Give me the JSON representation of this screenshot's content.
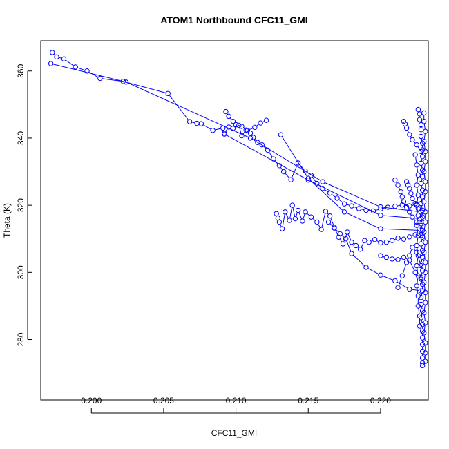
{
  "chart_data": {
    "type": "scatter",
    "title": "ATOM1 Northbound CFC11_GMI",
    "xlabel": "CFC11_GMI",
    "ylabel": "Theta (K)",
    "xlim": [
      0.1965,
      0.2233
    ],
    "ylim": [
      262,
      369
    ],
    "xticks": [
      0.2,
      0.205,
      0.21,
      0.215,
      0.22
    ],
    "xtick_labels": [
      "0.200",
      "0.205",
      "0.210",
      "0.215",
      "0.220"
    ],
    "yticks": [
      280,
      300,
      320,
      340,
      360
    ],
    "ytick_labels": [
      "280",
      "300",
      "320",
      "340",
      "360"
    ],
    "grid": false,
    "legend": "none",
    "marker": "open-circle",
    "style": "points-and-lines",
    "color": "#0000ff",
    "series": [
      {
        "points": [
          [
            0.1973,
            365.5
          ],
          [
            0.1976,
            364.2
          ],
          [
            0.1981,
            363.6
          ],
          [
            0.1989,
            361.2
          ],
          [
            0.1997,
            360.0
          ],
          [
            0.2006,
            357.8
          ],
          [
            0.2022,
            356.9
          ],
          [
            0.2053,
            353.3
          ],
          [
            0.2068,
            344.9
          ],
          [
            0.2073,
            344.4
          ],
          [
            0.2076,
            344.3
          ],
          [
            0.2084,
            342.3
          ],
          [
            0.2091,
            343.0
          ],
          [
            0.2092,
            341.5
          ],
          [
            0.2095,
            343.3
          ],
          [
            0.2098,
            342.9
          ],
          [
            0.2102,
            343.8
          ],
          [
            0.2104,
            340.7
          ],
          [
            0.2107,
            342.4
          ],
          [
            0.211,
            341.5
          ],
          [
            0.2112,
            340.2
          ],
          [
            0.2115,
            338.7
          ],
          [
            0.2118,
            338.0
          ],
          [
            0.2122,
            336.4
          ],
          [
            0.2126,
            333.8
          ],
          [
            0.213,
            331.8
          ],
          [
            0.2133,
            330.0
          ],
          [
            0.2138,
            327.6
          ],
          [
            0.2143,
            332.6
          ],
          [
            0.2148,
            330.2
          ],
          [
            0.2152,
            328.9
          ],
          [
            0.2156,
            326.5
          ],
          [
            0.216,
            325.0
          ],
          [
            0.2165,
            323.6
          ],
          [
            0.217,
            322.1
          ],
          [
            0.2175,
            320.4
          ],
          [
            0.218,
            319.8
          ],
          [
            0.2185,
            319.0
          ],
          [
            0.219,
            318.5
          ],
          [
            0.2195,
            318.3
          ],
          [
            0.22,
            318.9
          ],
          [
            0.2205,
            319.4
          ],
          [
            0.221,
            319.7
          ],
          [
            0.2215,
            320.1
          ],
          [
            0.222,
            319.8
          ],
          [
            0.2225,
            320.2
          ],
          [
            0.2228,
            320.5
          ]
        ]
      },
      {
        "points": [
          [
            0.2093,
            347.9
          ],
          [
            0.2095,
            346.5
          ],
          [
            0.2098,
            345.0
          ],
          [
            0.21,
            344.0
          ],
          [
            0.2104,
            343.5
          ],
          [
            0.2108,
            342.3
          ],
          [
            0.2113,
            343.2
          ],
          [
            0.2117,
            344.5
          ],
          [
            0.2121,
            345.3
          ]
        ]
      },
      {
        "points": [
          [
            0.1972,
            362.2
          ],
          [
            0.2024,
            356.7
          ],
          [
            0.211,
            340.0
          ],
          [
            0.216,
            327.0
          ],
          [
            0.22,
            319.5
          ],
          [
            0.2228,
            318.0
          ]
        ]
      },
      {
        "points": [
          [
            0.2128,
            317.5
          ],
          [
            0.2129,
            316.2
          ],
          [
            0.213,
            315.0
          ],
          [
            0.2132,
            313.0
          ],
          [
            0.2134,
            318.0
          ],
          [
            0.2137,
            315.5
          ],
          [
            0.2139,
            320.0
          ],
          [
            0.2141,
            316.0
          ],
          [
            0.2143,
            318.5
          ],
          [
            0.2146,
            315.3
          ],
          [
            0.2148,
            318.0
          ],
          [
            0.2152,
            316.5
          ],
          [
            0.2156,
            315.0
          ],
          [
            0.2159,
            312.8
          ],
          [
            0.2162,
            318.2
          ],
          [
            0.2165,
            316.8
          ],
          [
            0.2168,
            313.5
          ],
          [
            0.2171,
            310.5
          ],
          [
            0.2174,
            308.5
          ],
          [
            0.2177,
            312.0
          ],
          [
            0.218,
            309.0
          ],
          [
            0.2183,
            308.0
          ],
          [
            0.2186,
            306.9
          ],
          [
            0.2189,
            309.5
          ],
          [
            0.2192,
            309.0
          ],
          [
            0.2196,
            309.8
          ],
          [
            0.22,
            308.8
          ],
          [
            0.2204,
            309.0
          ],
          [
            0.2208,
            309.5
          ],
          [
            0.2212,
            310.2
          ],
          [
            0.2216,
            309.9
          ],
          [
            0.222,
            310.6
          ],
          [
            0.2224,
            311.2
          ],
          [
            0.2228,
            311.0
          ]
        ]
      },
      {
        "points": [
          [
            0.2164,
            315.0
          ],
          [
            0.2168,
            313.2
          ],
          [
            0.2172,
            311.5
          ],
          [
            0.2176,
            310.0
          ],
          [
            0.218,
            305.6
          ],
          [
            0.219,
            301.5
          ],
          [
            0.22,
            299.2
          ],
          [
            0.221,
            297.5
          ],
          [
            0.222,
            295.0
          ],
          [
            0.2228,
            294.5
          ]
        ]
      },
      {
        "points": [
          [
            0.2212,
            295.5
          ],
          [
            0.2215,
            299.0
          ],
          [
            0.2218,
            303.0
          ],
          [
            0.222,
            305.0
          ],
          [
            0.2222,
            307.5
          ],
          [
            0.2225,
            306.0
          ],
          [
            0.2228,
            302.0
          ]
        ]
      },
      {
        "points": [
          [
            0.22,
            305.0
          ],
          [
            0.2204,
            304.5
          ],
          [
            0.2208,
            304.0
          ],
          [
            0.2212,
            303.8
          ],
          [
            0.2216,
            304.5
          ],
          [
            0.222,
            303.6
          ],
          [
            0.2224,
            300.0
          ],
          [
            0.2228,
            298.0
          ]
        ]
      },
      {
        "points": [
          [
            0.2131,
            341.0
          ],
          [
            0.215,
            328.0
          ],
          [
            0.2175,
            318.0
          ],
          [
            0.22,
            313.0
          ],
          [
            0.2228,
            312.5
          ]
        ]
      },
      {
        "points": [
          [
            0.2092,
            341.2
          ],
          [
            0.215,
            327.5
          ],
          [
            0.22,
            317.0
          ],
          [
            0.2228,
            316.0
          ]
        ]
      },
      {
        "points": [
          [
            0.221,
            327.5
          ],
          [
            0.2212,
            326.0
          ],
          [
            0.2214,
            324.0
          ],
          [
            0.2215,
            322.5
          ],
          [
            0.2216,
            321.0
          ],
          [
            0.2218,
            319.5
          ],
          [
            0.222,
            318.0
          ],
          [
            0.2222,
            316.5
          ],
          [
            0.2225,
            315.0
          ],
          [
            0.2228,
            314.0
          ]
        ]
      },
      {
        "points": [
          [
            0.2218,
            327.0
          ],
          [
            0.2219,
            326.0
          ],
          [
            0.222,
            325.0
          ],
          [
            0.2221,
            323.5
          ],
          [
            0.2222,
            322.0
          ],
          [
            0.2224,
            320.5
          ],
          [
            0.2226,
            319.0
          ]
        ]
      },
      {
        "points": [
          [
            0.2216,
            345.0
          ],
          [
            0.2217,
            344.2
          ],
          [
            0.2218,
            343.0
          ],
          [
            0.222,
            341.0
          ],
          [
            0.2222,
            339.5
          ],
          [
            0.2225,
            338.0
          ],
          [
            0.2228,
            336.0
          ]
        ]
      },
      {
        "points": [
          [
            0.2226,
            348.5
          ],
          [
            0.2227,
            347.2
          ],
          [
            0.2227,
            345.5
          ],
          [
            0.2228,
            344.0
          ],
          [
            0.2228,
            342.5
          ],
          [
            0.2228,
            340.5
          ],
          [
            0.2229,
            338.5
          ],
          [
            0.2229,
            336.5
          ],
          [
            0.2229,
            334.5
          ],
          [
            0.2228,
            332.5
          ],
          [
            0.2229,
            330.5
          ],
          [
            0.2229,
            328.5
          ],
          [
            0.2228,
            326.5
          ],
          [
            0.2229,
            324.5
          ],
          [
            0.2229,
            322.5
          ],
          [
            0.2228,
            320.5
          ],
          [
            0.2229,
            318.5
          ],
          [
            0.2229,
            316.5
          ],
          [
            0.2228,
            314.5
          ],
          [
            0.2229,
            312.5
          ],
          [
            0.2229,
            310.5
          ],
          [
            0.2228,
            308.5
          ],
          [
            0.2229,
            306.5
          ],
          [
            0.2229,
            304.5
          ],
          [
            0.2228,
            302.5
          ],
          [
            0.2229,
            300.5
          ],
          [
            0.2228,
            298.5
          ],
          [
            0.2229,
            296.5
          ],
          [
            0.2229,
            294.5
          ],
          [
            0.2228,
            292.5
          ],
          [
            0.2228,
            290.5
          ],
          [
            0.2229,
            288.5
          ],
          [
            0.2228,
            286.5
          ],
          [
            0.2229,
            284.5
          ],
          [
            0.2229,
            282.5
          ],
          [
            0.2229,
            280.5
          ],
          [
            0.2229,
            278.5
          ],
          [
            0.2229,
            276.5
          ],
          [
            0.2229,
            274.5
          ],
          [
            0.2229,
            273.0
          ],
          [
            0.2229,
            272.2
          ]
        ]
      },
      {
        "points": [
          [
            0.223,
            347.5
          ],
          [
            0.223,
            345.0
          ],
          [
            0.2231,
            342.0
          ],
          [
            0.223,
            339.0
          ],
          [
            0.2231,
            336.0
          ],
          [
            0.2231,
            333.0
          ],
          [
            0.223,
            330.0
          ],
          [
            0.2231,
            327.0
          ],
          [
            0.2231,
            324.0
          ],
          [
            0.223,
            321.0
          ],
          [
            0.2231,
            318.0
          ],
          [
            0.2231,
            315.0
          ],
          [
            0.223,
            312.0
          ],
          [
            0.2231,
            309.0
          ],
          [
            0.223,
            306.0
          ],
          [
            0.2231,
            303.0
          ],
          [
            0.2231,
            300.0
          ],
          [
            0.223,
            297.0
          ],
          [
            0.2231,
            294.0
          ],
          [
            0.2231,
            291.0
          ],
          [
            0.223,
            288.0
          ],
          [
            0.2231,
            285.0
          ],
          [
            0.223,
            282.0
          ],
          [
            0.2231,
            279.0
          ],
          [
            0.2231,
            276.0
          ],
          [
            0.2231,
            273.5
          ]
        ]
      },
      {
        "points": [
          [
            0.2224,
            335.0
          ],
          [
            0.2225,
            332.0
          ],
          [
            0.2226,
            329.0
          ],
          [
            0.2225,
            326.0
          ],
          [
            0.2226,
            323.0
          ],
          [
            0.2225,
            320.0
          ],
          [
            0.2226,
            317.0
          ],
          [
            0.2225,
            314.0
          ],
          [
            0.2226,
            311.0
          ],
          [
            0.2225,
            308.0
          ],
          [
            0.2226,
            305.0
          ],
          [
            0.2225,
            302.0
          ],
          [
            0.2226,
            299.0
          ],
          [
            0.2225,
            296.0
          ],
          [
            0.2226,
            293.0
          ],
          [
            0.2226,
            290.0
          ],
          [
            0.2227,
            287.0
          ],
          [
            0.2227,
            284.0
          ]
        ]
      }
    ]
  }
}
